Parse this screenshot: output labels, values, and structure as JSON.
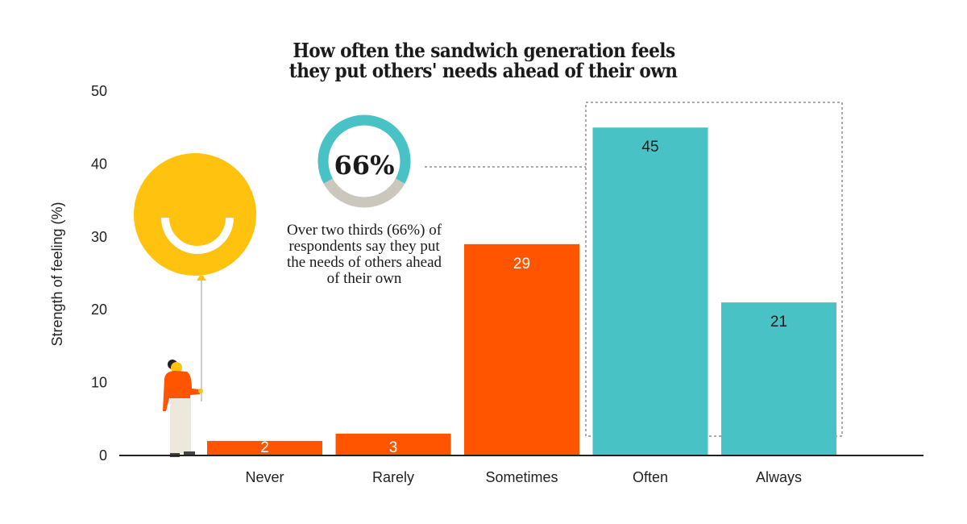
{
  "chart_data": {
    "type": "bar",
    "title_lines": [
      "How often the sandwich generation feels",
      "they put others' needs ahead of their own"
    ],
    "xlabel": "",
    "ylabel": "Strength of feeling (%)",
    "ylim": [
      0,
      50
    ],
    "yticks": [
      0,
      10,
      20,
      30,
      40,
      50
    ],
    "grid": false,
    "categories": [
      "Never",
      "Rarely",
      "Sometimes",
      "Often",
      "Always"
    ],
    "values": [
      2,
      3,
      29,
      45,
      21
    ],
    "bar_colors": [
      "#ff5500",
      "#ff5500",
      "#ff5500",
      "#48c2c5",
      "#48c2c5"
    ],
    "label_colors": [
      "#ffffff",
      "#ffffff",
      "#ffffff",
      "#1a1a1a",
      "#1a1a1a"
    ],
    "highlight": {
      "categories": [
        "Often",
        "Always"
      ],
      "donut_value": "66%",
      "donut_fraction": 0.66,
      "donut_colors": {
        "filled": "#48c2c5",
        "rest": "#ccc7bc"
      },
      "note": "Over two thirds (66%) of respondents say they put the needs of others ahead of their own"
    },
    "illustration": {
      "balloon_color": "#ffc20e",
      "shirt_color": "#ff5500"
    }
  }
}
